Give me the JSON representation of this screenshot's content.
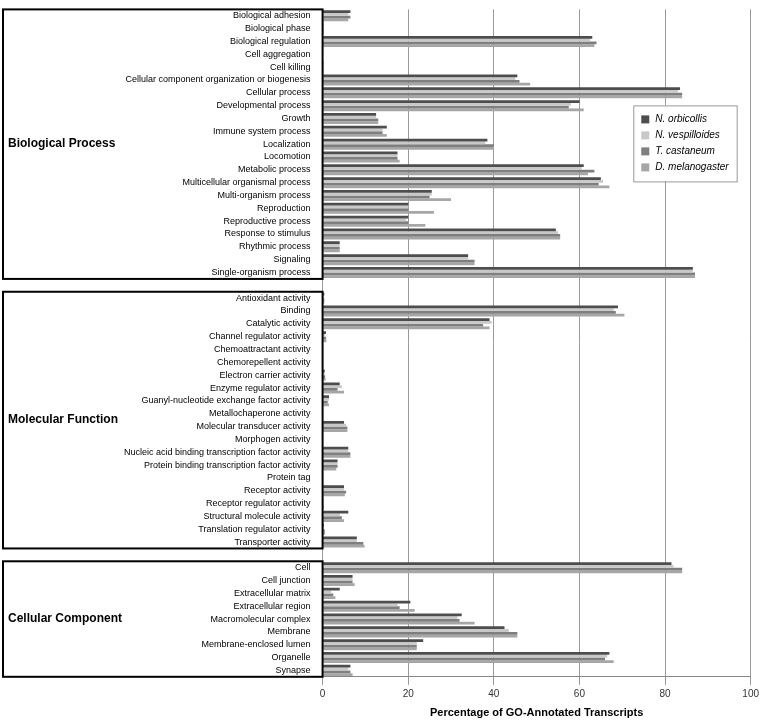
{
  "chart_data": {
    "type": "bar",
    "orientation": "horizontal",
    "xlabel": "Percentage of GO-Annotated Transcripts",
    "groups": [
      "Biological Process",
      "Molecular Function",
      "Cellular Component"
    ],
    "categories": [
      "Biological adhesion",
      "Biological phase",
      "Biological regulation",
      "Cell aggregation",
      "Cell killing",
      "Cellular component organization or biogenesis",
      "Cellular process",
      "Developmental process",
      "Growth",
      "Immune system process",
      "Localization",
      "Locomotion",
      "Metabolic process",
      "Multicellular organismal process",
      "Multi-organism process",
      "Reproduction",
      "Reproductive process",
      "Response to stimulus",
      "Rhythmic process",
      "Signaling",
      "Single-organism process",
      null,
      "Antioxidant activity",
      "Binding",
      "Catalytic activity",
      "Channel regulator activity",
      "Chemoattractant activity",
      "Chemorepellent activity",
      "Electron carrier activity",
      "Enzyme regulator activity",
      "Guanyl-nucleotide exchange factor activity",
      "Metallochaperone activity",
      "Molecular transducer activity",
      "Morphogen activity",
      "Nucleic acid binding transcription factor activity",
      "Protein binding transcription factor activity",
      "Protein tag",
      "Receptor activity",
      "Receptor regulator activity",
      "Structural molecule activity",
      "Translation regulator activity",
      "Transporter activity",
      null,
      "Cell",
      "Cell junction",
      "Extracellular matrix",
      "Extracellular region",
      "Macromolecular complex",
      "Membrane",
      "Membrane-enclosed lumen",
      "Organelle",
      "Synapse"
    ],
    "series": [
      {
        "name": "N. orbicollis",
        "color": "#4d4d4d",
        "values": [
          6.5,
          0.2,
          63,
          0,
          0.2,
          45.5,
          83.5,
          60,
          12.5,
          15,
          38.5,
          17.5,
          61,
          65,
          25.5,
          20,
          20,
          54.5,
          4,
          34,
          86.5,
          null,
          0.4,
          69,
          39,
          0.8,
          0,
          0,
          0.5,
          4,
          1.5,
          0,
          5,
          0,
          6,
          3.5,
          0,
          5,
          0.2,
          6,
          0.3,
          8,
          null,
          81.5,
          7,
          4,
          20.5,
          32.5,
          42.5,
          23.5,
          67,
          6.5
        ]
      },
      {
        "name": "N. vespilloides",
        "color": "#c8c8c8",
        "values": [
          6,
          0.2,
          62.5,
          0,
          0.2,
          45,
          83,
          58,
          12.5,
          14,
          38,
          17.5,
          60.5,
          65.5,
          25.5,
          20,
          19.5,
          55,
          4,
          34,
          86.5,
          null,
          0.3,
          68,
          39.5,
          0.5,
          0,
          0,
          0.5,
          4.5,
          1.5,
          0,
          5.5,
          0,
          6,
          3.5,
          0,
          5,
          0.2,
          4,
          0.3,
          8,
          null,
          82,
          7,
          2,
          17.5,
          31.5,
          43.5,
          22,
          66.5,
          6
        ]
      },
      {
        "name": "T. castaneum",
        "color": "#7f7f7f",
        "values": [
          6.5,
          0.2,
          64,
          0,
          0.2,
          46,
          84,
          57.5,
          13,
          14,
          40,
          17.5,
          63.5,
          64.5,
          25,
          20,
          20,
          55.5,
          4,
          35.5,
          87,
          null,
          0.4,
          68.5,
          37.5,
          0.8,
          0,
          0,
          0.6,
          3.5,
          1.2,
          0,
          5.8,
          0,
          6.5,
          3.5,
          0,
          5.5,
          0.2,
          4.5,
          0.5,
          9.5,
          null,
          84,
          7,
          2.5,
          18,
          32,
          45.5,
          22,
          66,
          6.5
        ]
      },
      {
        "name": "D. melanogaster",
        "color": "#a6a6a6",
        "values": [
          6,
          0.2,
          63.5,
          0,
          0.2,
          48.5,
          84,
          61,
          13,
          15,
          40,
          18,
          62,
          67,
          30,
          26,
          24,
          55.5,
          4,
          35.5,
          87,
          null,
          0.4,
          70.5,
          39,
          0.9,
          0,
          0,
          0.7,
          5,
          1.5,
          0,
          5.8,
          0,
          6.5,
          3.2,
          0,
          5.2,
          0.3,
          5,
          0.6,
          9.8,
          null,
          84,
          7.5,
          3,
          21.5,
          35.5,
          45.5,
          22,
          68,
          7
        ]
      }
    ],
    "xlim": [
      0,
      100
    ],
    "xticks": [
      0,
      20,
      40,
      60,
      80,
      100
    ],
    "grid": true,
    "legend": "upper right"
  }
}
